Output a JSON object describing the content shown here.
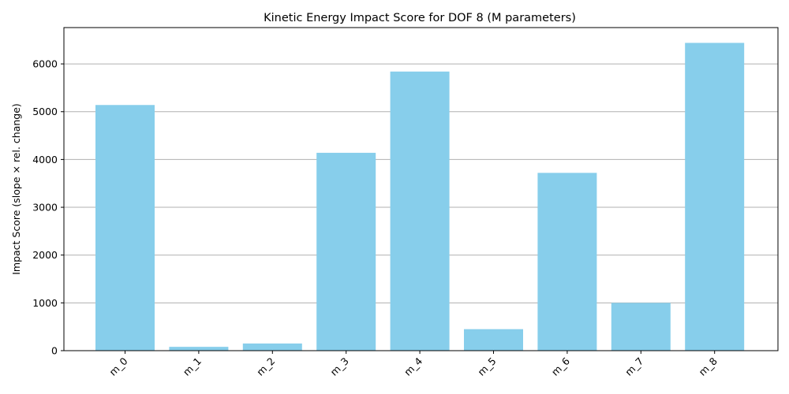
{
  "chart_data": {
    "type": "bar",
    "title": "Kinetic Energy Impact Score for DOF 8 (M parameters)",
    "xlabel": "",
    "ylabel": "Impact Score (slope × rel. change)",
    "categories": [
      "m_0",
      "m_1",
      "m_2",
      "m_3",
      "m_4",
      "m_5",
      "m_6",
      "m_7",
      "m_8"
    ],
    "values": [
      5140,
      80,
      150,
      4140,
      5840,
      450,
      3720,
      1000,
      6440
    ],
    "ylim": [
      0,
      6760
    ],
    "yticks": [
      0,
      1000,
      2000,
      3000,
      4000,
      5000,
      6000
    ],
    "grid": "y",
    "bar_color": "#87CEEB"
  }
}
